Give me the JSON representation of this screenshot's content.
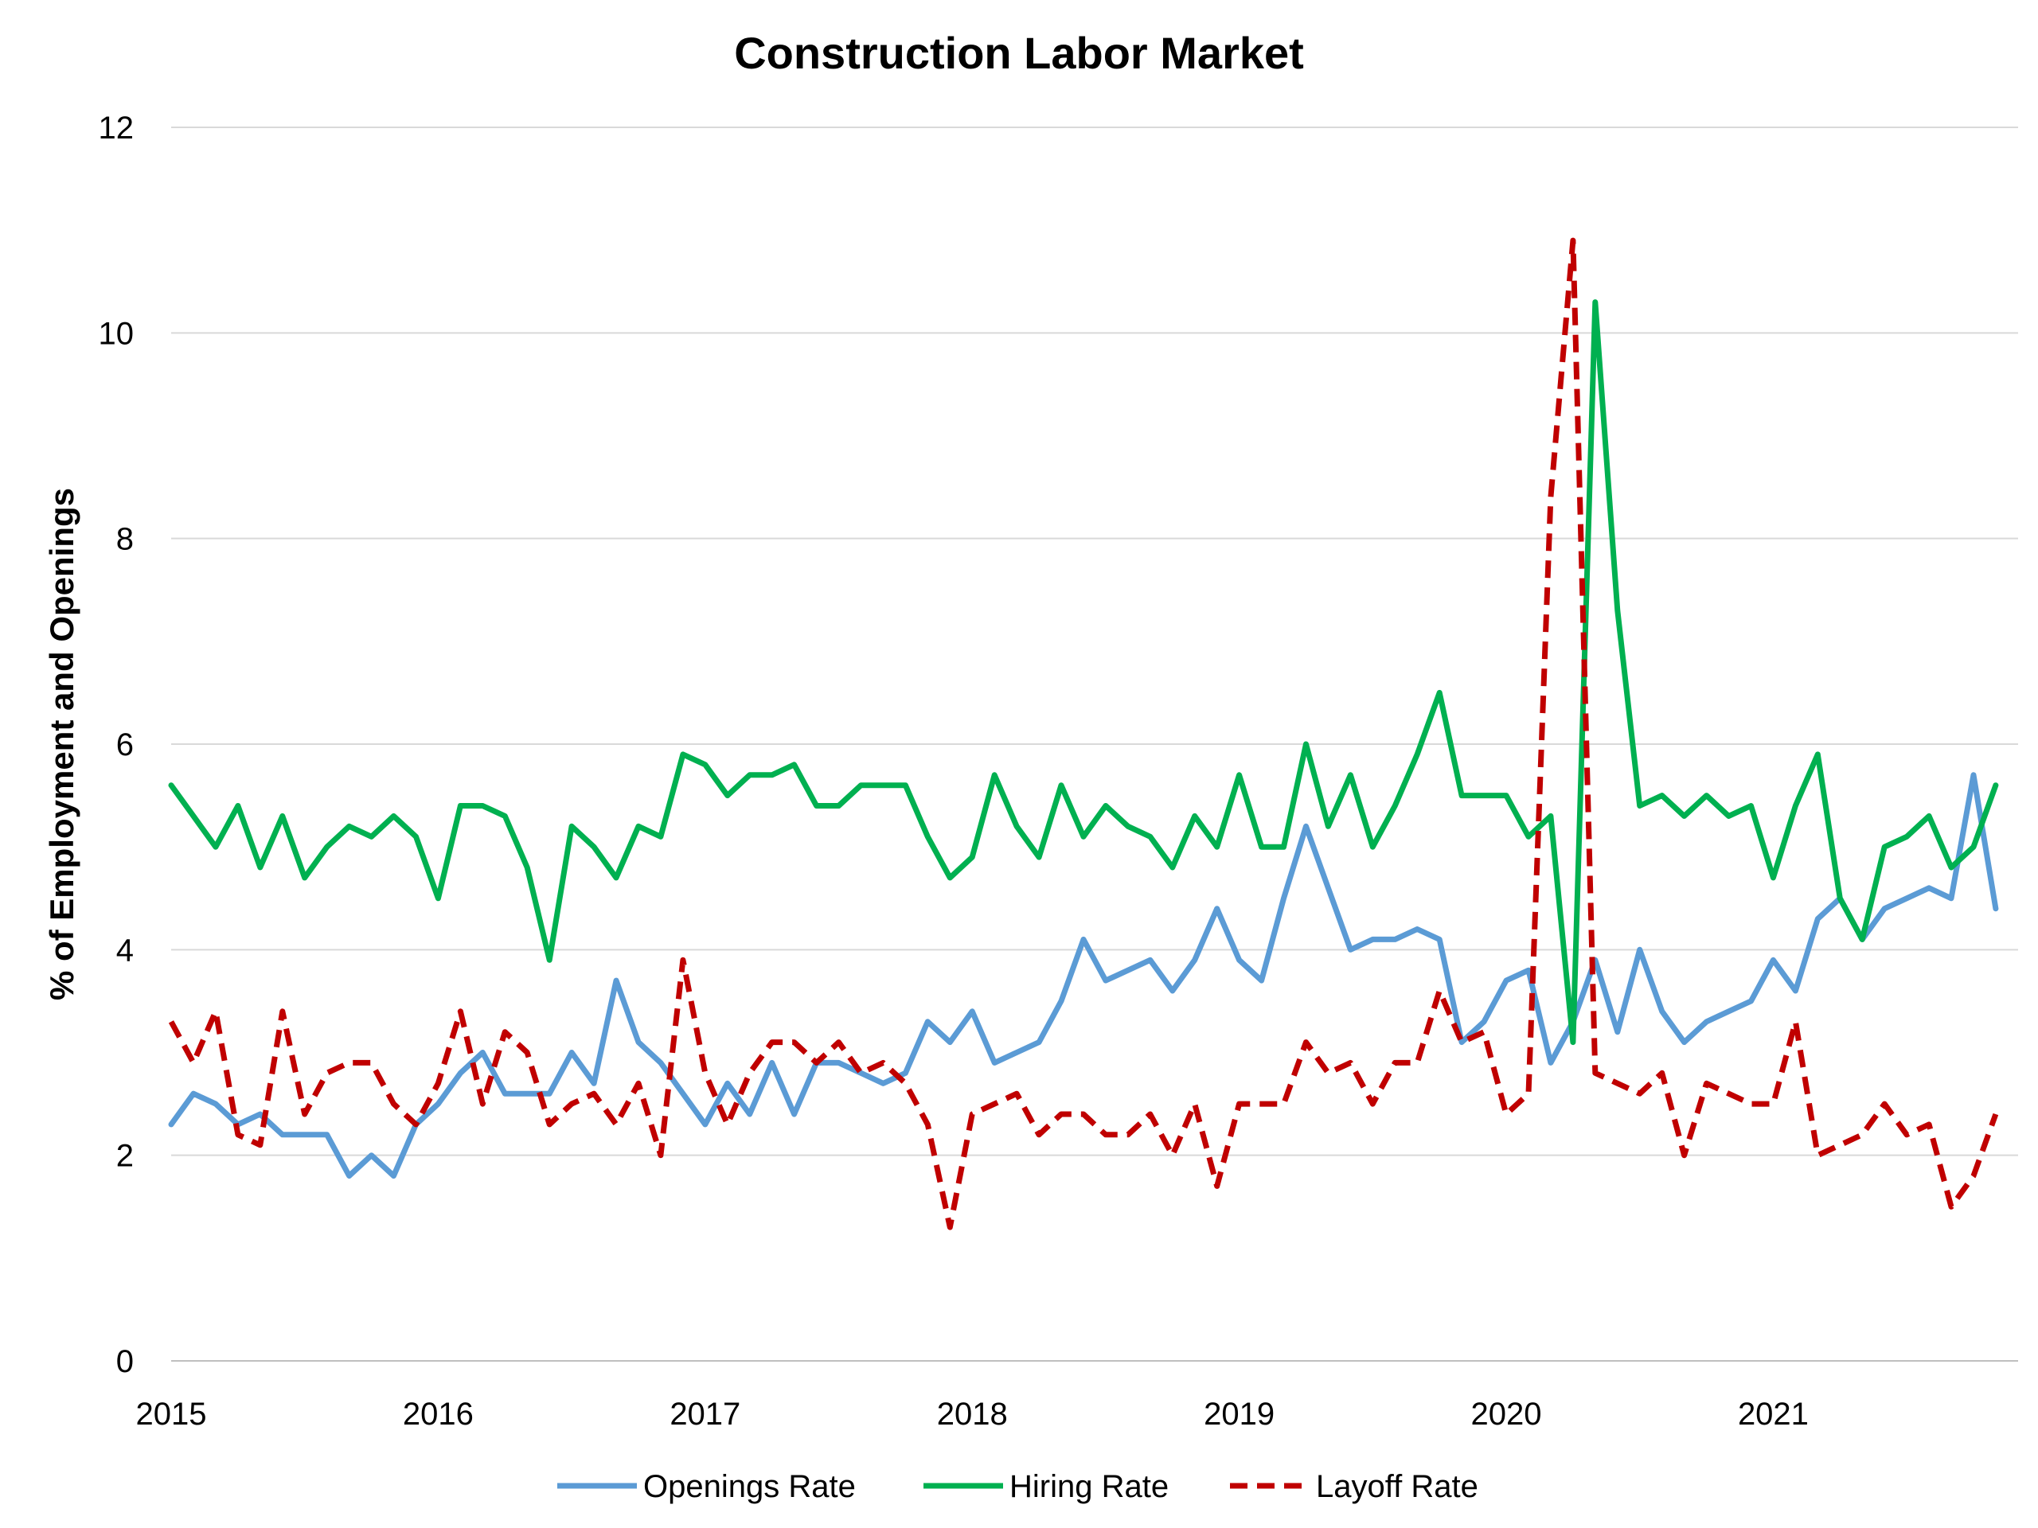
{
  "chart_data": {
    "type": "line",
    "title": "Construction Labor Market",
    "xlabel": "",
    "ylabel": "% of Employment and Openings",
    "ylim": [
      0,
      12
    ],
    "yticks": [
      "0",
      "2",
      "4",
      "6",
      "8",
      "10",
      "12"
    ],
    "xlim": [
      2015.0,
      2021.917
    ],
    "xticks": [
      "2015",
      "2016",
      "2017",
      "2018",
      "2019",
      "2020",
      "2021"
    ],
    "grid": true,
    "legend": "bottom",
    "series": [
      {
        "name": "Openings Rate",
        "color": "#5b9bd5",
        "dash": "solid",
        "values": [
          2.3,
          2.6,
          2.5,
          2.3,
          2.4,
          2.2,
          2.2,
          2.2,
          1.8,
          2.0,
          1.8,
          2.3,
          2.5,
          2.8,
          3.0,
          2.6,
          2.6,
          2.6,
          3.0,
          2.7,
          3.7,
          3.1,
          2.9,
          2.6,
          2.3,
          2.7,
          2.4,
          2.9,
          2.4,
          2.9,
          2.9,
          2.8,
          2.7,
          2.8,
          3.3,
          3.1,
          3.4,
          2.9,
          3.0,
          3.1,
          3.5,
          4.1,
          3.7,
          3.8,
          3.9,
          3.6,
          3.9,
          4.4,
          3.9,
          3.7,
          4.5,
          5.2,
          4.6,
          4.0,
          4.1,
          4.1,
          4.2,
          4.1,
          3.1,
          3.3,
          3.7,
          3.8,
          2.9,
          3.3,
          3.9,
          3.2,
          4.0,
          3.4,
          3.1,
          3.3,
          3.4,
          3.5,
          3.9,
          3.6,
          4.3,
          4.5,
          4.1,
          4.4,
          4.5,
          4.6,
          4.5,
          5.7,
          4.4
        ]
      },
      {
        "name": "Hiring Rate",
        "color": "#00b050",
        "dash": "solid",
        "values": [
          5.6,
          5.3,
          5.0,
          5.4,
          4.8,
          5.3,
          4.7,
          5.0,
          5.2,
          5.1,
          5.3,
          5.1,
          4.5,
          5.4,
          5.4,
          5.3,
          4.8,
          3.9,
          5.2,
          5.0,
          4.7,
          5.2,
          5.1,
          5.9,
          5.8,
          5.5,
          5.7,
          5.7,
          5.8,
          5.4,
          5.4,
          5.6,
          5.6,
          5.6,
          5.1,
          4.7,
          4.9,
          5.7,
          5.2,
          4.9,
          5.6,
          5.1,
          5.4,
          5.2,
          5.1,
          4.8,
          5.3,
          5.0,
          5.7,
          5.0,
          5.0,
          6.0,
          5.2,
          5.7,
          5.0,
          5.4,
          5.9,
          6.5,
          5.5,
          5.5,
          5.5,
          5.1,
          5.3,
          3.1,
          10.3,
          7.3,
          5.4,
          5.5,
          5.3,
          5.5,
          5.3,
          5.4,
          4.7,
          5.4,
          5.9,
          4.5,
          4.1,
          5.0,
          5.1,
          5.3,
          4.8,
          5.0,
          5.6
        ]
      },
      {
        "name": "Layoff Rate",
        "color": "#c00000",
        "dash": "dashed",
        "values": [
          3.3,
          2.9,
          3.4,
          2.2,
          2.1,
          3.4,
          2.4,
          2.8,
          2.9,
          2.9,
          2.5,
          2.3,
          2.7,
          3.4,
          2.5,
          3.2,
          3.0,
          2.3,
          2.5,
          2.6,
          2.3,
          2.7,
          2.0,
          3.9,
          2.8,
          2.3,
          2.8,
          3.1,
          3.1,
          2.9,
          3.1,
          2.8,
          2.9,
          2.7,
          2.3,
          1.3,
          2.4,
          2.5,
          2.6,
          2.2,
          2.4,
          2.4,
          2.2,
          2.2,
          2.4,
          2.0,
          2.5,
          1.7,
          2.5,
          2.5,
          2.5,
          3.1,
          2.8,
          2.9,
          2.5,
          2.9,
          2.9,
          3.6,
          3.1,
          3.2,
          2.4,
          2.6,
          8.4,
          10.9,
          2.8,
          2.7,
          2.6,
          2.8,
          2.0,
          2.7,
          2.6,
          2.5,
          2.5,
          3.3,
          2.0,
          2.1,
          2.2,
          2.5,
          2.2,
          2.3,
          1.5,
          1.8,
          2.4
        ]
      }
    ]
  }
}
